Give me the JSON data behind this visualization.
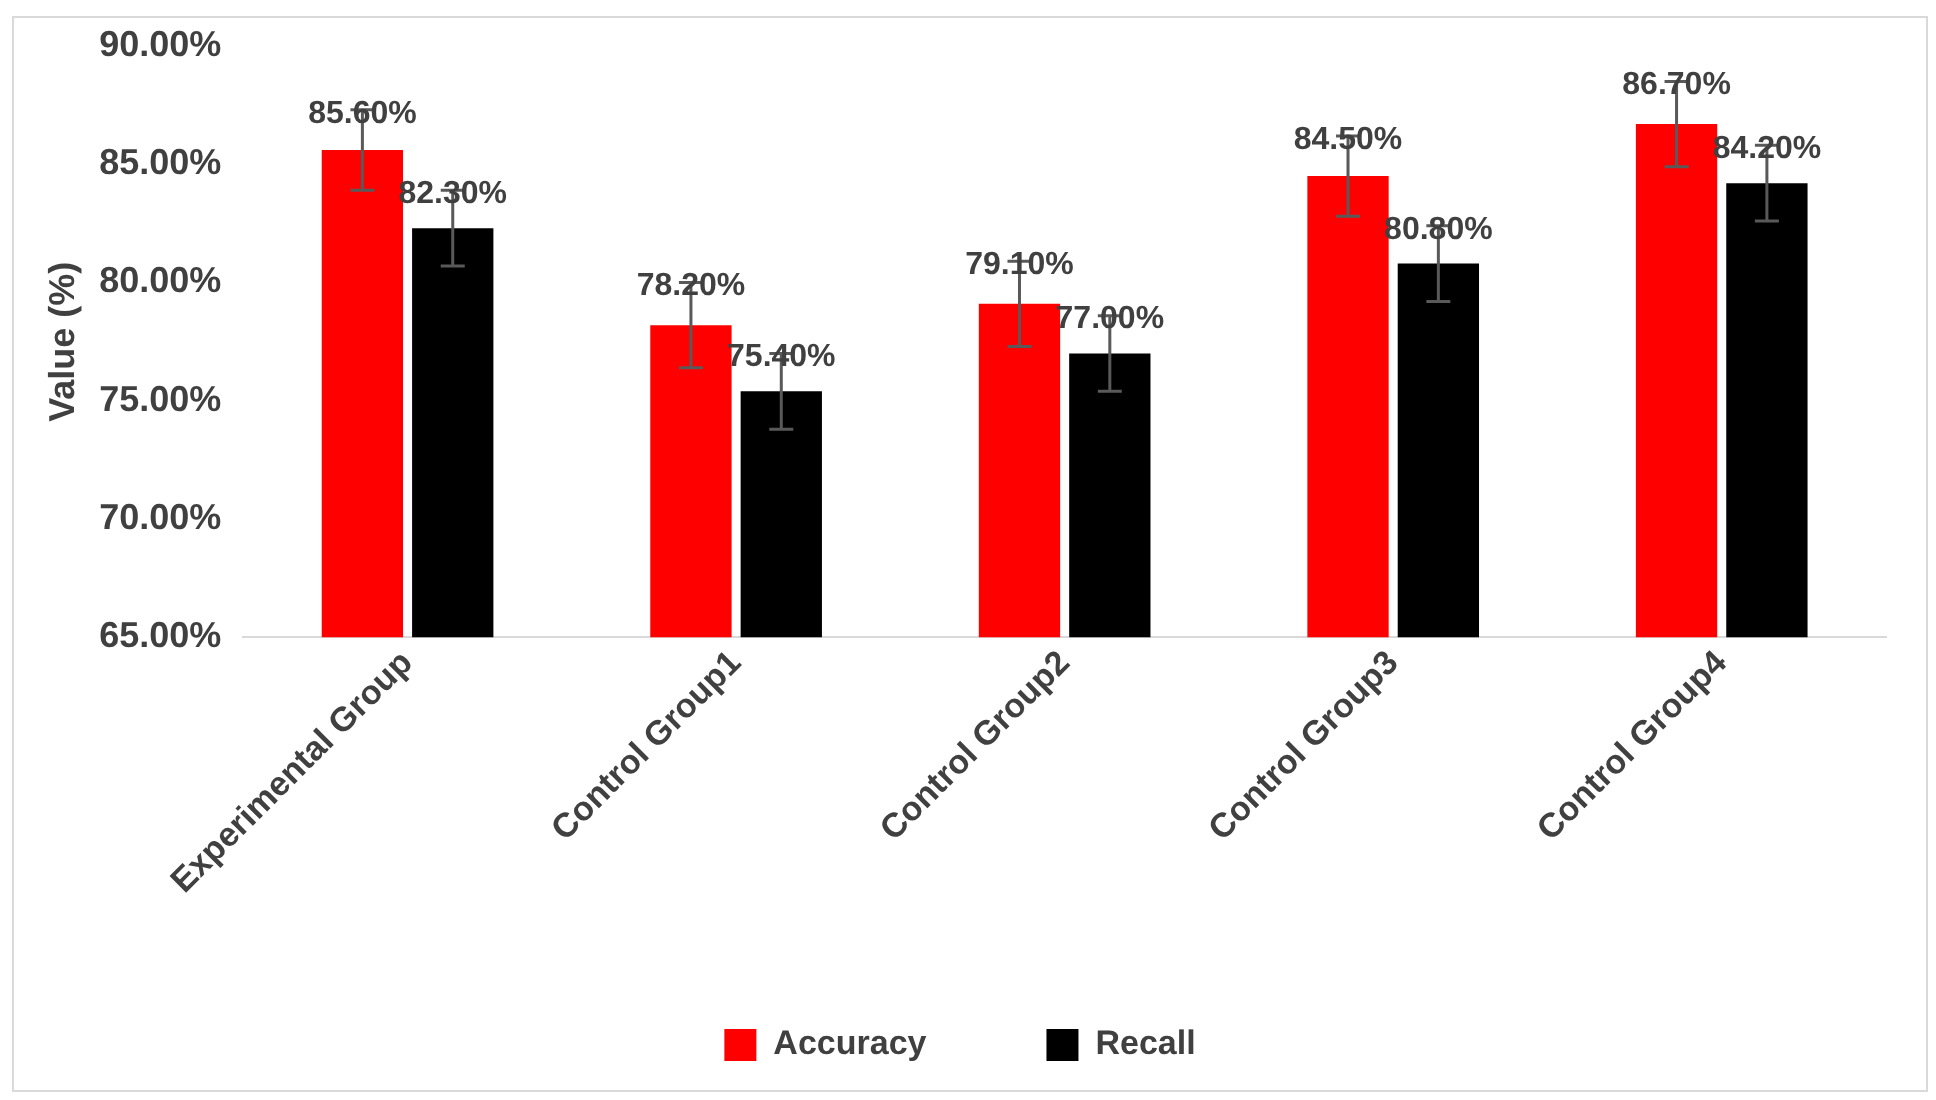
{
  "chart_data": {
    "type": "bar",
    "ylabel": "Value (%)",
    "categories": [
      "Experimental Group",
      "Control Group1",
      "Control Group2",
      "Control Group3",
      "Control Group4"
    ],
    "series": [
      {
        "name": "Accuracy",
        "color": "#ff0000",
        "values": [
          85.6,
          78.2,
          79.1,
          84.5,
          86.7
        ],
        "errors": [
          1.7,
          1.8,
          1.8,
          1.7,
          1.8
        ],
        "value_labels": [
          "85.60%",
          "78.20%",
          "79.10%",
          "84.50%",
          "86.70%"
        ]
      },
      {
        "name": "Recall",
        "color": "#000000",
        "values": [
          82.3,
          75.4,
          77.0,
          80.8,
          84.2
        ],
        "errors": [
          1.6,
          1.6,
          1.6,
          1.6,
          1.6
        ],
        "value_labels": [
          "82.30%",
          "75.40%",
          "77.00%",
          "80.80%",
          "84.20%"
        ]
      }
    ],
    "ylim": [
      65,
      90
    ],
    "yticks": [
      {
        "value": 65,
        "label": "65.00%"
      },
      {
        "value": 70,
        "label": "70.00%"
      },
      {
        "value": 75,
        "label": "75.00%"
      },
      {
        "value": 80,
        "label": "80.00%"
      },
      {
        "value": 85,
        "label": "85.00%"
      },
      {
        "value": 90,
        "label": "90.00%"
      }
    ],
    "grid": false,
    "legend": "bottom"
  }
}
